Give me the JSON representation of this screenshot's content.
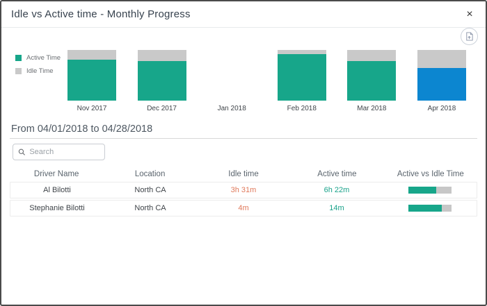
{
  "modal": {
    "title": "Idle vs Active time - Monthly Progress",
    "close_glyph": "×"
  },
  "toolbar": {
    "export_icon": "export-document-icon"
  },
  "colors": {
    "active": "#17A68A",
    "idle": "#C9C9C9",
    "selected": "#0C86D0",
    "idle_text": "#E0795B",
    "active_text": "#19A28A",
    "progress_track": "#C7C7C7"
  },
  "chart_data": {
    "type": "bar",
    "stacked_percent": true,
    "categories": [
      "Nov 2017",
      "Dec 2017",
      "Jan 2018",
      "Feb 2018",
      "Mar 2018",
      "Apr 2018"
    ],
    "series": [
      {
        "name": "Active Time",
        "values": [
          81,
          78,
          null,
          92,
          78,
          65
        ]
      },
      {
        "name": "Idle Time",
        "values": [
          19,
          22,
          null,
          8,
          22,
          35
        ]
      }
    ],
    "highlighted_category": "Apr 2018",
    "legend_position": "left",
    "ylim": [
      0,
      100
    ],
    "grid": false,
    "title": "",
    "xlabel": "",
    "ylabel": ""
  },
  "period_heading": "From 04/01/2018 to 04/28/2018",
  "search": {
    "placeholder": "Search"
  },
  "table": {
    "columns": [
      "Driver Name",
      "Location",
      "Idle time",
      "Active time",
      "Active vs Idle Time"
    ],
    "rows": [
      {
        "driver": "Al Bilotti",
        "location": "North CA",
        "idle": "3h 31m",
        "active": "6h 22m",
        "active_pct": 64
      },
      {
        "driver": "Stephanie Bilotti",
        "location": "North CA",
        "idle": "4m",
        "active": "14m",
        "active_pct": 78
      }
    ]
  }
}
